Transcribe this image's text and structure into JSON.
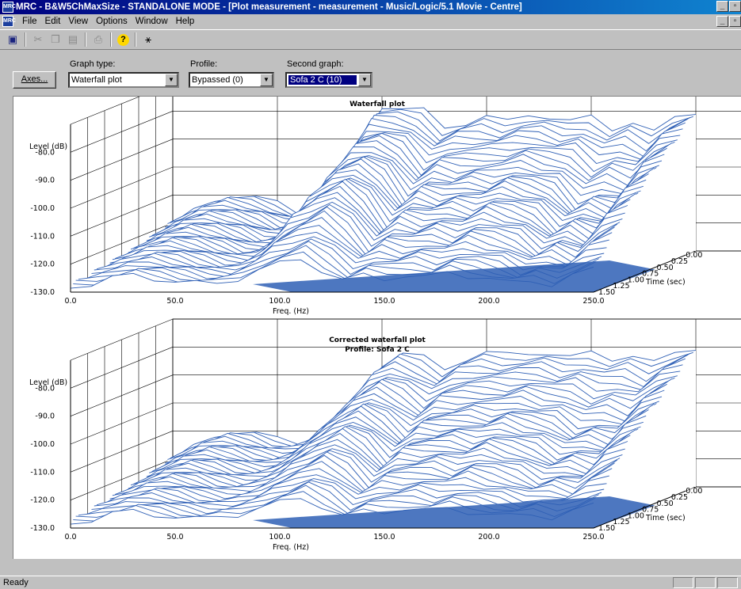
{
  "window": {
    "title": "MRC - B&W5ChMaxSize - STANDALONE MODE - [Plot measurement - measurement - Music/Logic/5.1 Movie - Centre]",
    "app_icon": "MRC",
    "minimize": "_",
    "restore": "▫",
    "close": "✕"
  },
  "menu": {
    "items": [
      "File",
      "Edit",
      "View",
      "Options",
      "Window",
      "Help"
    ]
  },
  "toolbar": {
    "icons": [
      "save-icon",
      "cut-icon",
      "copy-icon",
      "paste-icon",
      "print-icon",
      "help-icon",
      "context-help-icon"
    ],
    "glyphs": {
      "save": "▣",
      "cut": "✂",
      "copy": "❐",
      "paste": "▤",
      "print": "⎙",
      "help": "?",
      "whatsthis": "⚹"
    }
  },
  "controls": {
    "axes_label": "Axes...",
    "graph_type": {
      "label": "Graph type:",
      "value": "Waterfall plot"
    },
    "profile": {
      "label": "Profile:",
      "value": "Bypassed (0)"
    },
    "second_graph": {
      "label": "Second graph:",
      "value": "Sofa 2 C (10)"
    }
  },
  "graphs": [
    {
      "title": "Waterfall plot",
      "subtitle": "",
      "ylabel": "Level (dB)",
      "xlabel": "Freq. (Hz)",
      "zlabel": "Time (sec)",
      "yticks": [
        "-80.0",
        "-90.0",
        "-100.0",
        "-110.0",
        "-120.0",
        "-130.0"
      ],
      "xticks": [
        "0.0",
        "50.0",
        "100.0",
        "150.0",
        "200.0",
        "250.0"
      ],
      "zticks": [
        "0.00",
        "0.25",
        "0.50",
        "0.75",
        "1.00",
        "1.25",
        "1.50"
      ]
    },
    {
      "title": "Corrected waterfall plot",
      "subtitle": "Profile: Sofa 2 C",
      "ylabel": "Level (dB)",
      "xlabel": "Freq. (Hz)",
      "zlabel": "Time (sec)",
      "yticks": [
        "-80.0",
        "-90.0",
        "-100.0",
        "-110.0",
        "-120.0",
        "-130.0"
      ],
      "xticks": [
        "0.0",
        "50.0",
        "100.0",
        "150.0",
        "200.0",
        "250.0"
      ],
      "zticks": [
        "0.00",
        "0.25",
        "0.50",
        "0.75",
        "1.00",
        "1.25",
        "1.50"
      ]
    }
  ],
  "chart_data": [
    {
      "type": "area",
      "title": "Waterfall plot",
      "xlabel": "Freq. (Hz)",
      "ylabel": "Level (dB)",
      "zlabel": "Time (sec)",
      "xlim": [
        0,
        250
      ],
      "ylim": [
        -130,
        -70
      ],
      "zlim": [
        0,
        1.5
      ],
      "color": "#2e5fb5",
      "x": [
        0,
        10,
        20,
        30,
        40,
        50,
        60,
        70,
        80,
        90,
        100,
        110,
        120,
        130,
        140,
        150,
        160,
        170,
        180,
        190,
        200,
        210,
        220,
        230,
        240,
        250
      ],
      "series": [
        {
          "values": [
            -120,
            -116,
            -112,
            -110,
            -111,
            -113,
            -116,
            -115,
            -106,
            -92,
            -78,
            -79,
            -80,
            -86,
            -84,
            -82,
            -84,
            -81,
            -82,
            -84,
            -82,
            -86,
            -84,
            -88,
            -82,
            -80
          ]
        },
        {
          "values": [
            -124,
            -120,
            -116,
            -114,
            -115,
            -117,
            -120,
            -119,
            -112,
            -100,
            -92,
            -90,
            -94,
            -104,
            -98,
            -100,
            -98,
            -99,
            -96,
            -98,
            -100,
            -108,
            -104,
            -106,
            -96,
            -92
          ]
        },
        {
          "values": [
            -126,
            -123,
            -120,
            -118,
            -119,
            -121,
            -123,
            -123,
            -118,
            -108,
            -104,
            -100,
            -106,
            -116,
            -110,
            -112,
            -110,
            -112,
            -108,
            -110,
            -112,
            -118,
            -114,
            -118,
            -108,
            -104
          ]
        },
        {
          "values": [
            -128,
            -127,
            -125,
            -124,
            -125,
            -126,
            -127,
            -127,
            -125,
            -122,
            -120,
            -118,
            -122,
            -126,
            -124,
            -125,
            -124,
            -125,
            -123,
            -124,
            -125,
            -127,
            -126,
            -127,
            -124,
            -122
          ]
        }
      ]
    },
    {
      "type": "area",
      "title": "Corrected waterfall plot",
      "subtitle": "Profile: Sofa 2 C",
      "xlabel": "Freq. (Hz)",
      "ylabel": "Level (dB)",
      "zlabel": "Time (sec)",
      "xlim": [
        0,
        250
      ],
      "ylim": [
        -130,
        -70
      ],
      "zlim": [
        0,
        1.5
      ],
      "color": "#2e5fb5",
      "x": [
        0,
        10,
        20,
        30,
        40,
        50,
        60,
        70,
        80,
        90,
        100,
        110,
        120,
        130,
        140,
        150,
        160,
        170,
        180,
        190,
        200,
        210,
        220,
        230,
        240,
        250
      ],
      "series": [
        {
          "values": [
            -120,
            -116,
            -112,
            -110,
            -111,
            -113,
            -114,
            -112,
            -104,
            -96,
            -86,
            -82,
            -84,
            -88,
            -84,
            -82,
            -83,
            -82,
            -82,
            -84,
            -82,
            -84,
            -83,
            -86,
            -82,
            -80
          ]
        },
        {
          "values": [
            -124,
            -120,
            -116,
            -114,
            -115,
            -117,
            -118,
            -116,
            -110,
            -104,
            -98,
            -94,
            -98,
            -104,
            -98,
            -98,
            -97,
            -98,
            -96,
            -98,
            -99,
            -104,
            -102,
            -104,
            -96,
            -92
          ]
        },
        {
          "values": [
            -126,
            -123,
            -120,
            -118,
            -119,
            -121,
            -122,
            -121,
            -118,
            -112,
            -108,
            -104,
            -108,
            -116,
            -110,
            -110,
            -109,
            -111,
            -108,
            -110,
            -112,
            -116,
            -114,
            -116,
            -108,
            -104
          ]
        },
        {
          "values": [
            -128,
            -127,
            -125,
            -124,
            -125,
            -126,
            -127,
            -126,
            -125,
            -123,
            -121,
            -119,
            -122,
            -126,
            -124,
            -124,
            -123,
            -124,
            -123,
            -124,
            -125,
            -126,
            -125,
            -126,
            -124,
            -122
          ]
        }
      ]
    }
  ],
  "status": {
    "text": "Ready"
  }
}
